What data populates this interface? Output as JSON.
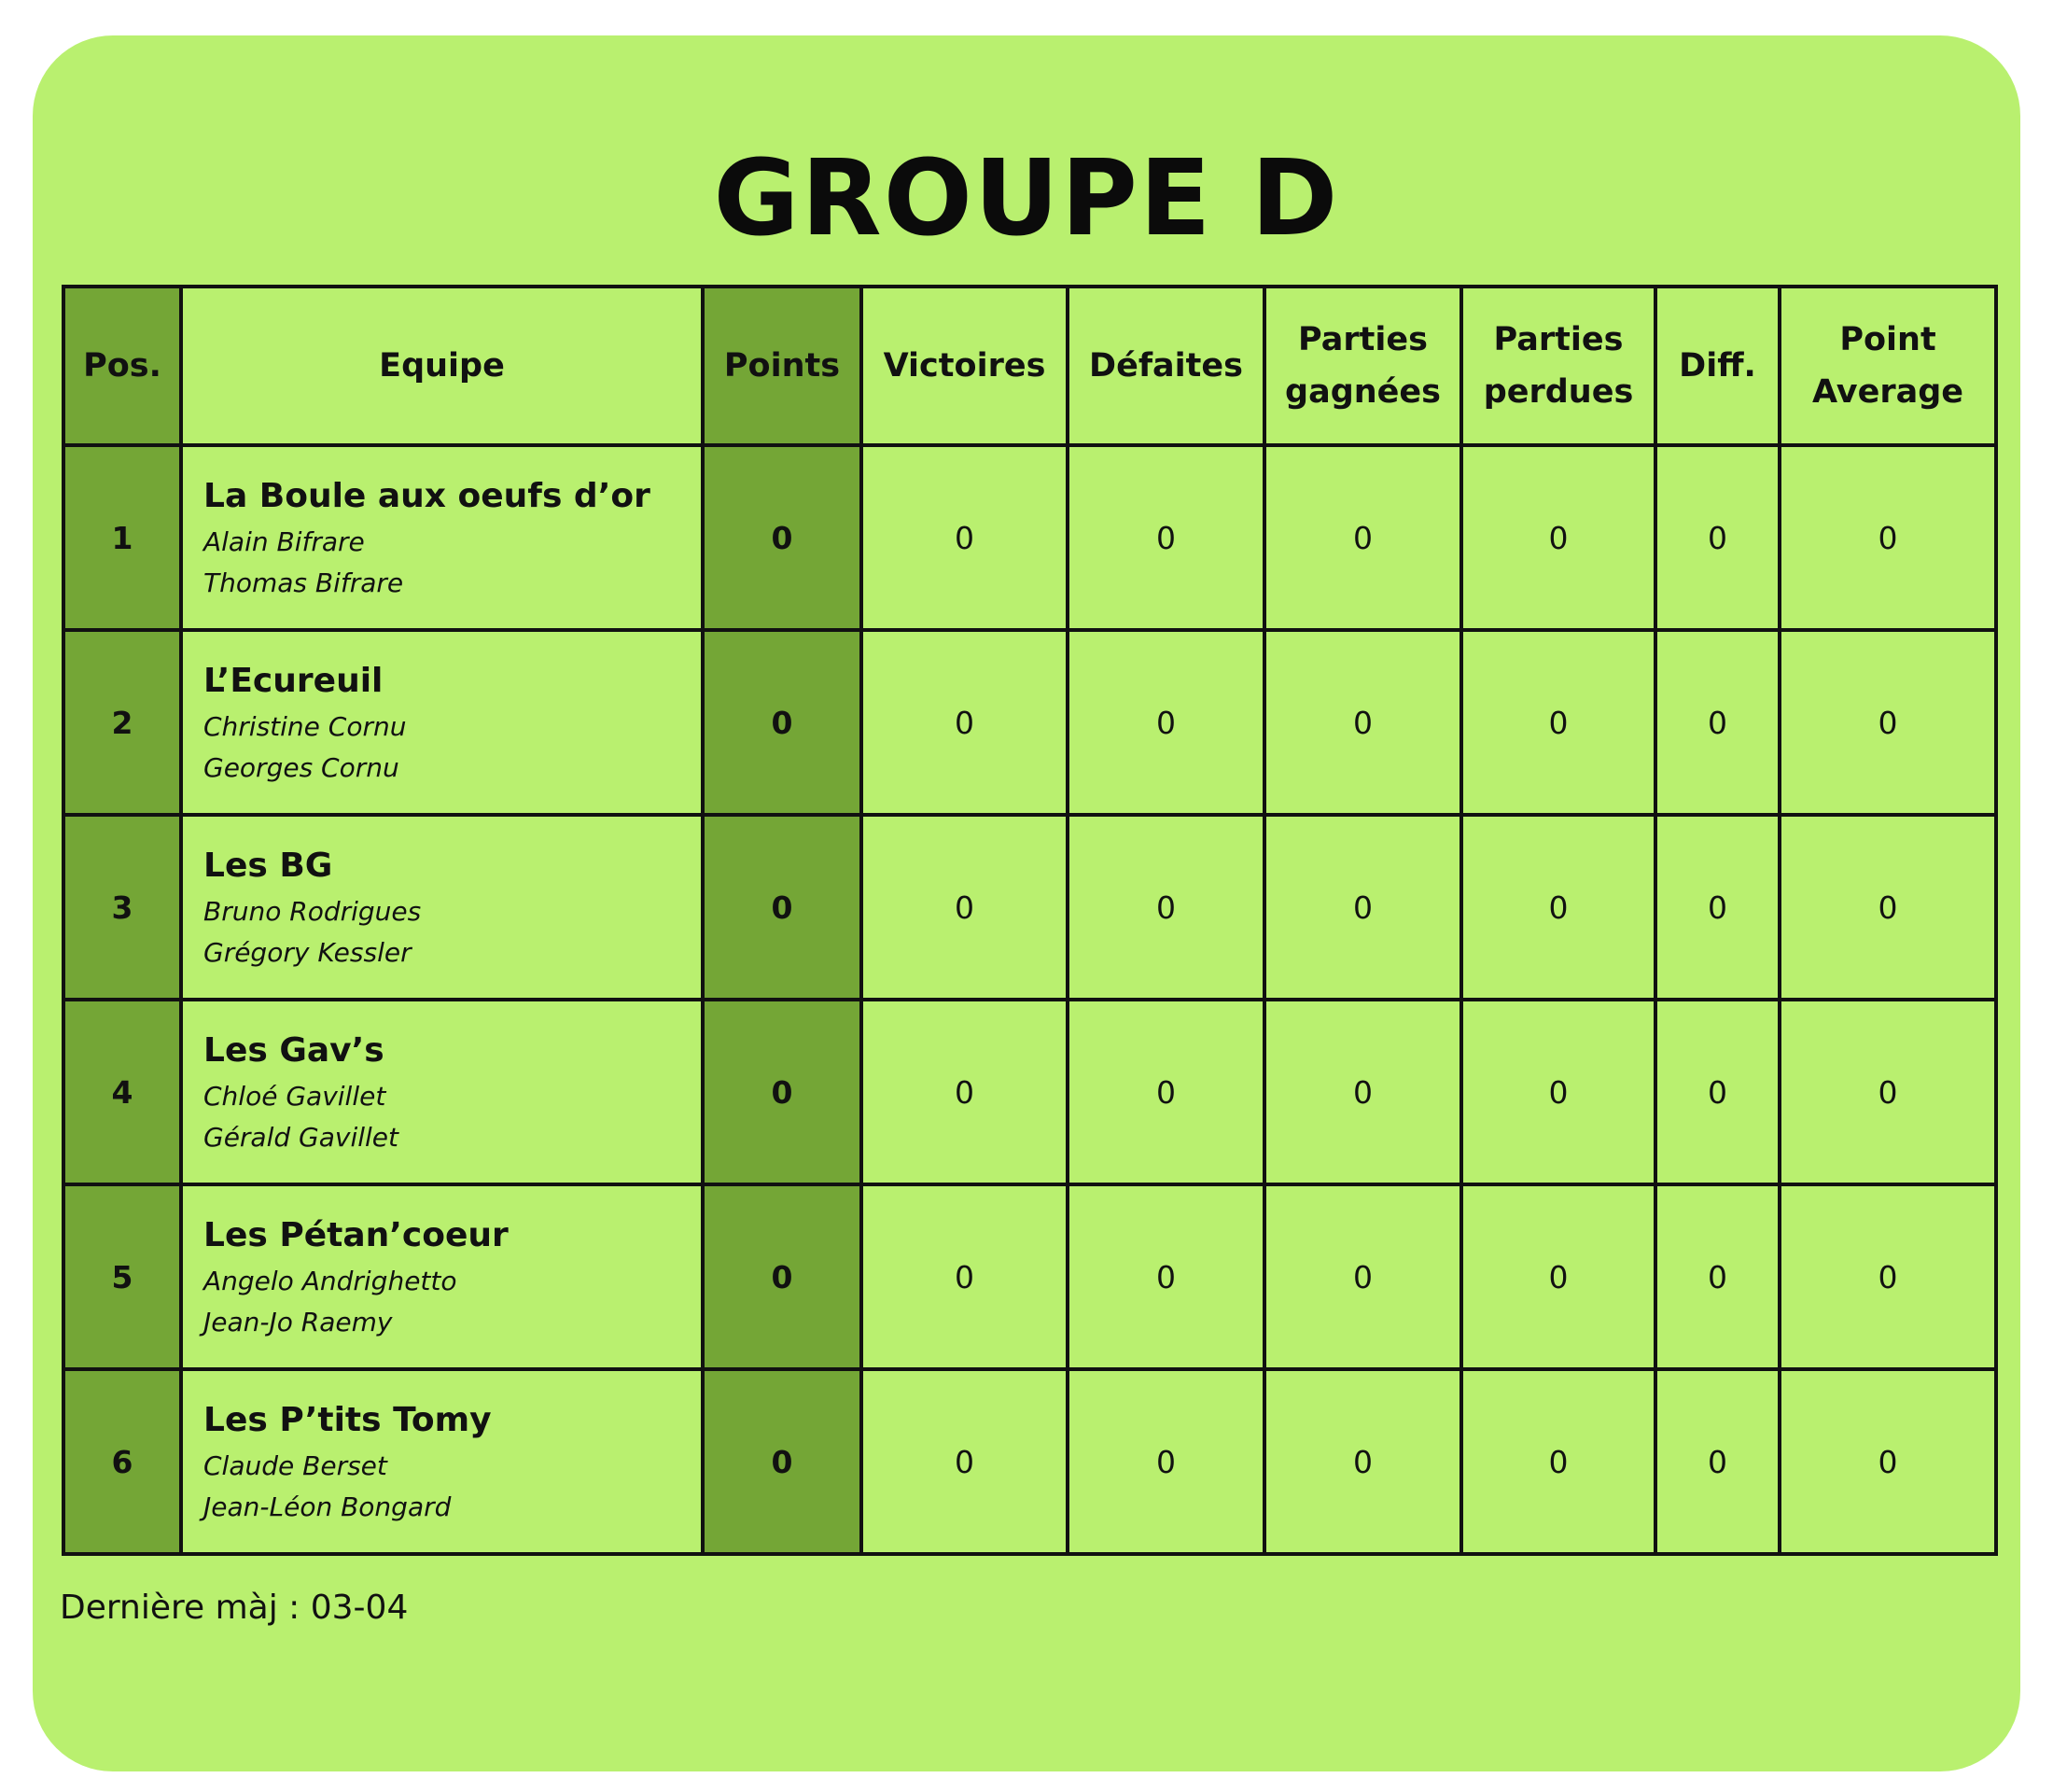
{
  "title": "Groupe D",
  "colors": {
    "background": "#b9f06f",
    "highlight_column": "#74a636",
    "border": "#111111"
  },
  "table": {
    "headers": [
      "Pos.",
      "Equipe",
      "Points",
      "Victoires",
      "Défaites",
      "Parties gagnées",
      "Parties perdues",
      "Diff.",
      "Point Average"
    ],
    "rows": [
      {
        "pos": "1",
        "team": "La Boule aux oeufs d’or",
        "players": [
          "Alain Bifrare",
          "Thomas Bifrare"
        ],
        "points": "0",
        "victoires": "0",
        "defaites": "0",
        "gagnees": "0",
        "perdues": "0",
        "diff": "0",
        "average": "0"
      },
      {
        "pos": "2",
        "team": "L’Ecureuil",
        "players": [
          "Christine Cornu",
          "Georges Cornu"
        ],
        "points": "0",
        "victoires": "0",
        "defaites": "0",
        "gagnees": "0",
        "perdues": "0",
        "diff": "0",
        "average": "0"
      },
      {
        "pos": "3",
        "team": "Les BG",
        "players": [
          "Bruno Rodrigues",
          "Grégory Kessler"
        ],
        "points": "0",
        "victoires": "0",
        "defaites": "0",
        "gagnees": "0",
        "perdues": "0",
        "diff": "0",
        "average": "0"
      },
      {
        "pos": "4",
        "team": "Les Gav’s",
        "players": [
          "Chloé Gavillet",
          "Gérald Gavillet"
        ],
        "points": "0",
        "victoires": "0",
        "defaites": "0",
        "gagnees": "0",
        "perdues": "0",
        "diff": "0",
        "average": "0"
      },
      {
        "pos": "5",
        "team": "Les Pétan’coeur",
        "players": [
          "Angelo Andrighetto",
          "Jean-Jo Raemy"
        ],
        "points": "0",
        "victoires": "0",
        "defaites": "0",
        "gagnees": "0",
        "perdues": "0",
        "diff": "0",
        "average": "0"
      },
      {
        "pos": "6",
        "team": "Les P’tits Tomy",
        "players": [
          "Claude Berset",
          "Jean-Léon Bongard"
        ],
        "points": "0",
        "victoires": "0",
        "defaites": "0",
        "gagnees": "0",
        "perdues": "0",
        "diff": "0",
        "average": "0"
      }
    ]
  },
  "footer": "Dernière màj : 03-04"
}
